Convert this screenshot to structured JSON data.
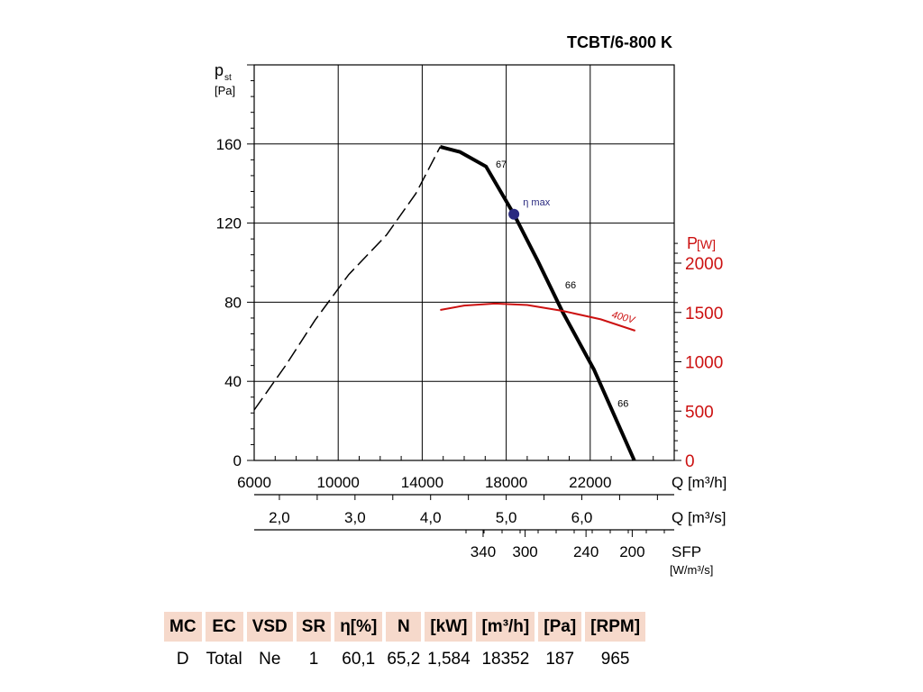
{
  "chart_data": {
    "type": "line",
    "title": "TCBT/6-800 K",
    "ylabel_main": "p",
    "ylabel_sub": "st",
    "ylabel_unit": "[Pa]",
    "y2label_main": "P",
    "y2label_unit": "[W]",
    "xlabel": "Q [m³/h]",
    "x2label": "Q [m³/s]",
    "x3label": "SFP",
    "x3label_unit": "[W/m³/s]",
    "xlim": [
      6000,
      26000
    ],
    "ylim": [
      0,
      200
    ],
    "y2lim": [
      0,
      2000
    ],
    "xticks": [
      6000,
      10000,
      14000,
      18000,
      22000
    ],
    "yticks": [
      0,
      40,
      80,
      120,
      160
    ],
    "y2ticks": [
      0,
      500,
      1000,
      1500,
      2000
    ],
    "x2ticks": [
      {
        "label": "2,0",
        "q": 7200
      },
      {
        "label": "3,0",
        "q": 10800
      },
      {
        "label": "4,0",
        "q": 14400
      },
      {
        "label": "5,0",
        "q": 18000
      },
      {
        "label": "6,0",
        "q": 21600
      }
    ],
    "sfp_ticks": [
      {
        "label": "340",
        "q": 16900
      },
      {
        "label": "300",
        "q": 18900
      },
      {
        "label": "240",
        "q": 21800
      },
      {
        "label": "200",
        "q": 24000
      }
    ],
    "series": [
      {
        "name": "pressure-unstable",
        "style": "dashed",
        "x": [
          6000,
          7500,
          8900,
          10500,
          12300,
          13700,
          14860
        ],
        "y": [
          25.5,
          48,
          71,
          94,
          114,
          135,
          158.6
        ]
      },
      {
        "name": "pressure",
        "style": "solid",
        "x": [
          14860,
          15800,
          17040,
          18366,
          19500,
          20677,
          22175,
          24100
        ],
        "y": [
          158.6,
          156,
          148.6,
          124.5,
          101,
          75.2,
          46,
          0
        ]
      },
      {
        "name": "power-400V",
        "axis": "right",
        "x": [
          14860,
          16000,
          17470,
          19000,
          20677,
          22500,
          24140
        ],
        "y": [
          1525,
          1570,
          1590,
          1575,
          1516,
          1430,
          1315
        ]
      }
    ],
    "annotations": [
      {
        "text": "67",
        "q": 17500,
        "p": 148
      },
      {
        "text": "η max",
        "q": 18800,
        "p": 129
      },
      {
        "text": "66",
        "q": 20800,
        "p": 87
      },
      {
        "text": "66",
        "q": 23300,
        "p": 27
      },
      {
        "text": "400V",
        "q": 23000,
        "p": 1450,
        "axis": "right"
      }
    ],
    "eta_max_point": {
      "q": 18366,
      "p": 124.5
    }
  },
  "table": {
    "headers": [
      "MC",
      "EC",
      "VSD",
      "SR",
      "η[%]",
      "N",
      "[kW]",
      "[m³/h]",
      "[Pa]",
      "[RPM]"
    ],
    "values": [
      "D",
      "Total",
      "Ne",
      "1",
      "60,1",
      "65,2",
      "1,584",
      "18352",
      "187",
      "965"
    ]
  },
  "colors": {
    "power": "#cc1111",
    "eta": "#2a2a80",
    "header_bg": "#f6d9cb"
  }
}
